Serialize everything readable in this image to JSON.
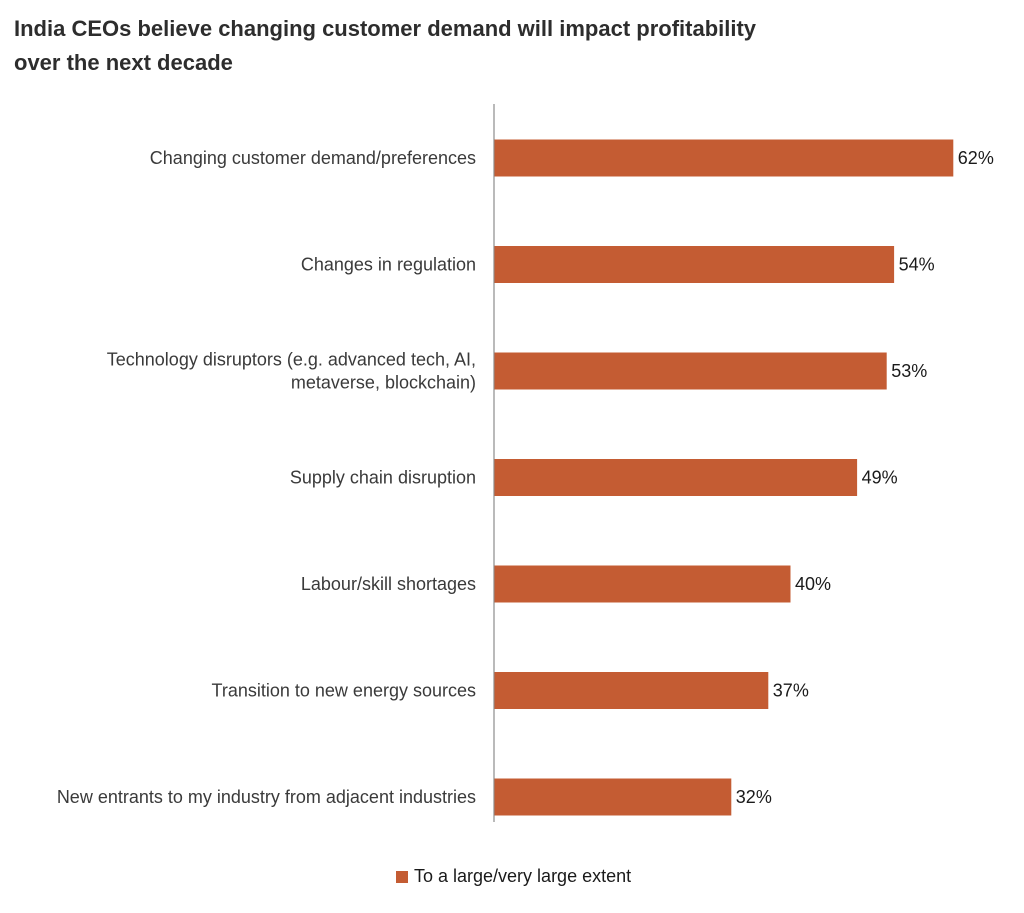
{
  "chart_data": {
    "type": "bar",
    "orientation": "horizontal",
    "title_lines": [
      "India CEOs believe changing customer demand will impact profitability",
      "over the next decade"
    ],
    "categories": [
      [
        "Changing customer demand/preferences"
      ],
      [
        "Changes in regulation"
      ],
      [
        "Technology disruptors (e.g. advanced tech, AI,",
        "metaverse, blockchain)"
      ],
      [
        "Supply chain disruption"
      ],
      [
        "Labour/skill shortages"
      ],
      [
        "Transition to new energy sources"
      ],
      [
        "New entrants to my industry from adjacent industries"
      ]
    ],
    "series": [
      {
        "name": "To a large/very large extent",
        "values": [
          62,
          54,
          53,
          49,
          40,
          37,
          32
        ],
        "labels": [
          "62%",
          "54%",
          "53%",
          "49%",
          "40%",
          "37%",
          "32%"
        ]
      }
    ],
    "bar_color": "#c45c33",
    "axis_color": "#8c8c8c",
    "unit": "%",
    "legend_position": "bottom"
  }
}
